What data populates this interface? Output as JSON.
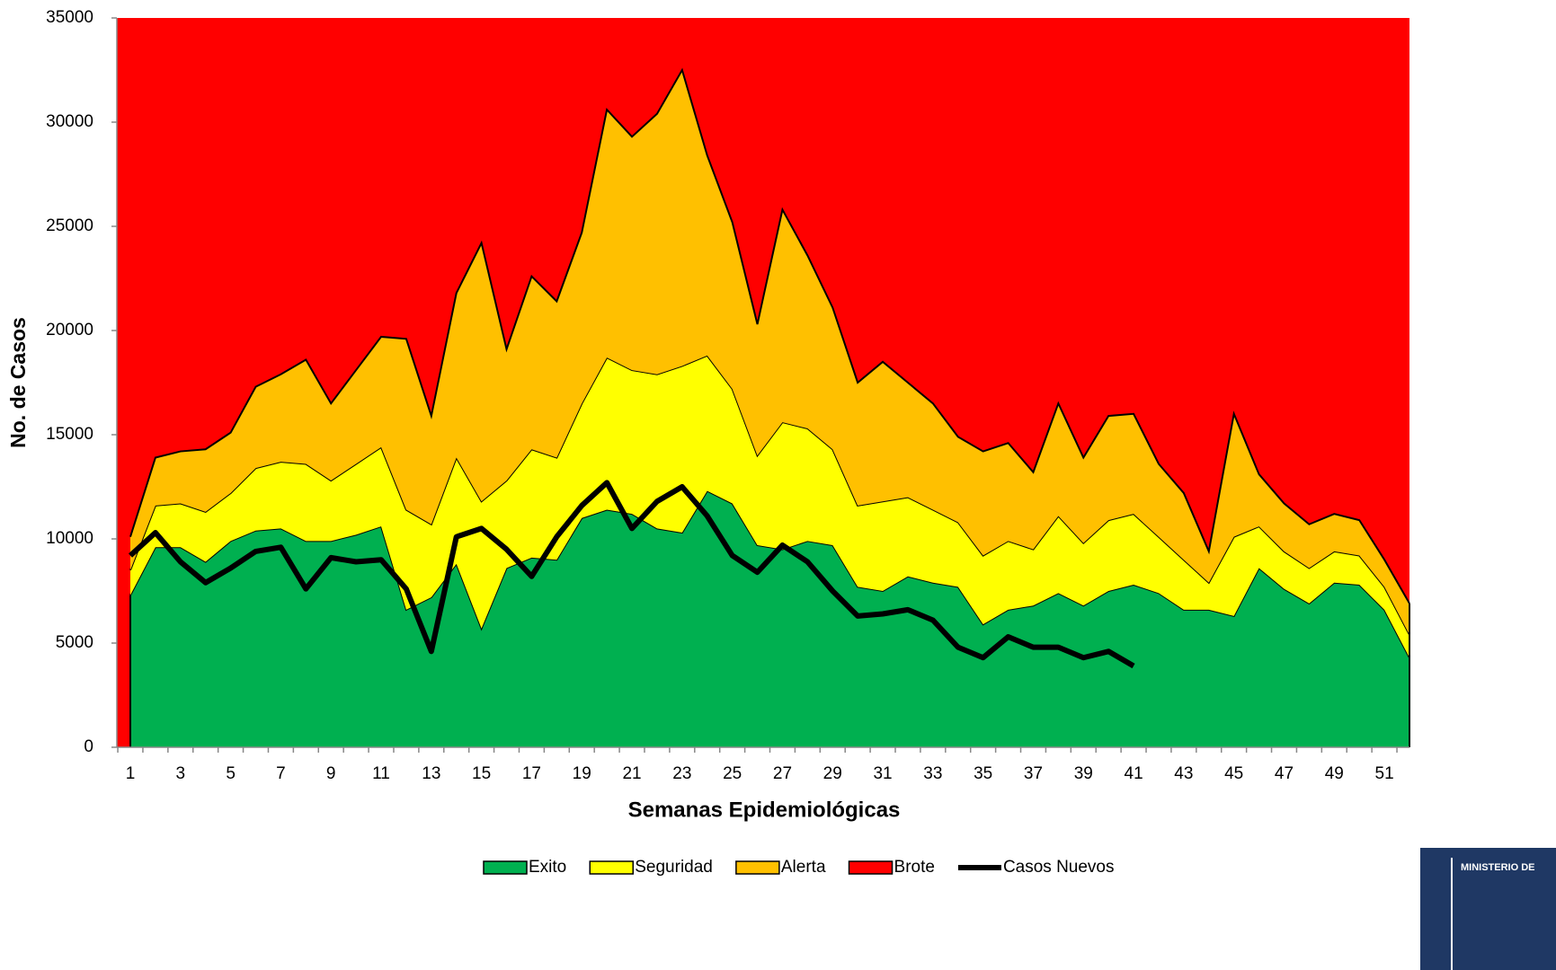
{
  "chart_data": {
    "type": "stacked-area",
    "xlabel": "Semanas Epidemiológicas",
    "ylabel": "No. de Casos",
    "categories": [
      1,
      null,
      3,
      null,
      5,
      null,
      7,
      null,
      9,
      null,
      11,
      null,
      13,
      null,
      15,
      null,
      17,
      null,
      19,
      null,
      21,
      null,
      23,
      null,
      25,
      null,
      27,
      null,
      29,
      null,
      31,
      null,
      33,
      null,
      35,
      null,
      37,
      null,
      39,
      null,
      41,
      null,
      43,
      null,
      45,
      null,
      47,
      null,
      49,
      null,
      51,
      null
    ],
    "ylim": [
      0,
      35000
    ],
    "yticks": [
      0,
      5000,
      10000,
      15000,
      20000,
      25000,
      30000,
      35000
    ],
    "background_series": {
      "name": "Brote",
      "color": "#ff0000"
    },
    "series": [
      {
        "name": "Exito",
        "color": "#00b050",
        "values": [
          7300,
          9600,
          9600,
          8900,
          9900,
          10400,
          10500,
          9900,
          9900,
          10200,
          10600,
          6600,
          7200,
          8800,
          5700,
          8600,
          9100,
          9000,
          11000,
          11400,
          11200,
          10500,
          10300,
          12300,
          11700,
          9700,
          9500,
          9900,
          9700,
          7700,
          7500,
          8200,
          7900,
          7700,
          5900,
          6600,
          6800,
          7400,
          6800,
          7500,
          7800,
          7400,
          6600,
          6600,
          6300,
          8600,
          7600,
          6900,
          7900,
          7800,
          6600,
          4300
        ]
      },
      {
        "name": "Seguridad",
        "color": "#ffff00",
        "values": [
          1200,
          2000,
          2100,
          2400,
          2300,
          3000,
          3200,
          3700,
          2900,
          3400,
          3800,
          4800,
          3500,
          5100,
          6100,
          4200,
          5200,
          4900,
          5500,
          7300,
          6900,
          7400,
          8000,
          6500,
          5500,
          4300,
          6100,
          5400,
          4600,
          3900,
          4300,
          3800,
          3500,
          3100,
          3300,
          3300,
          2700,
          3700,
          3000,
          3400,
          3400,
          2700,
          2400,
          1300,
          3800,
          2000,
          1800,
          1700,
          1500,
          1400,
          1100,
          1100
        ]
      },
      {
        "name": "Alerta",
        "color": "#ffc000",
        "values": [
          1600,
          2300,
          2500,
          3000,
          2900,
          3900,
          4200,
          5000,
          3700,
          4500,
          5300,
          8200,
          5200,
          7900,
          12400,
          6300,
          8300,
          7500,
          8200,
          11900,
          11200,
          12500,
          14200,
          9600,
          8000,
          6300,
          10200,
          8300,
          6800,
          5900,
          6700,
          5500,
          5100,
          4100,
          5000,
          4700,
          3700,
          5400,
          4100,
          5000,
          4800,
          3500,
          3200,
          1500,
          5900,
          2500,
          2300,
          2100,
          1800,
          1700,
          1300,
          1500
        ]
      }
    ],
    "line_series": {
      "name": "Casos Nuevos",
      "color": "#000000",
      "values": [
        9200,
        10300,
        8900,
        7900,
        8600,
        9400,
        9600,
        7600,
        9100,
        8900,
        9000,
        7600,
        4600,
        10100,
        10500,
        9500,
        8200,
        10100,
        11600,
        12700,
        10500,
        11800,
        12500,
        11100,
        9200,
        8400,
        9700,
        8900,
        7500,
        6300,
        6400,
        6600,
        6100,
        4800,
        4300,
        5300,
        4800,
        4800,
        4300,
        4600,
        3900,
        null,
        null,
        null,
        null,
        null,
        null,
        null,
        null,
        null,
        null,
        null
      ]
    },
    "logo_text": "MINISTERIO DE"
  }
}
